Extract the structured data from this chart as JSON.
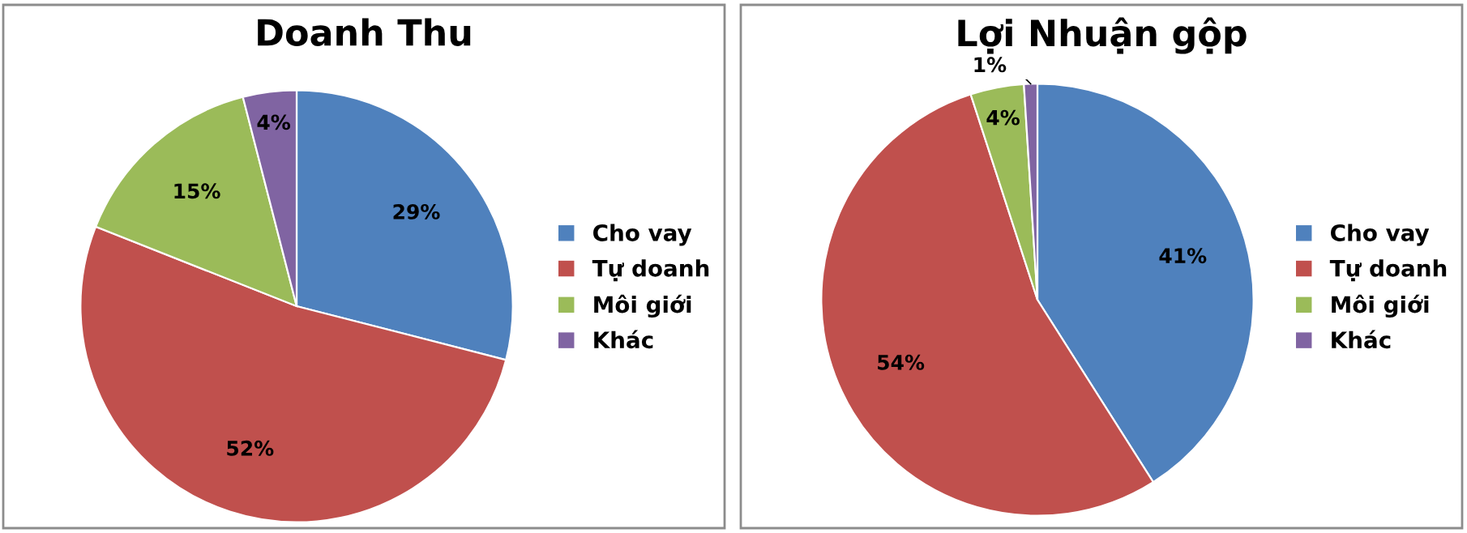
{
  "chart_data": [
    {
      "type": "pie",
      "title": "Doanh Thu",
      "categories": [
        "Cho vay",
        "Tự doanh",
        "Môi giới",
        "Khác"
      ],
      "values": [
        29,
        52,
        15,
        4
      ],
      "value_labels": [
        "29%",
        "52%",
        "15%",
        "4%"
      ],
      "colors": [
        "#4f81bd",
        "#c0504d",
        "#9bbb59",
        "#8064a2"
      ],
      "legend": "right"
    },
    {
      "type": "pie",
      "title": "Lợi Nhuận gộp",
      "categories": [
        "Cho vay",
        "Tự doanh",
        "Môi giới",
        "Khác"
      ],
      "values": [
        41,
        54,
        4,
        1
      ],
      "value_labels": [
        "41%",
        "54%",
        "4%",
        "1%"
      ],
      "colors": [
        "#4f81bd",
        "#c0504d",
        "#9bbb59",
        "#8064a2"
      ],
      "legend": "right"
    }
  ]
}
